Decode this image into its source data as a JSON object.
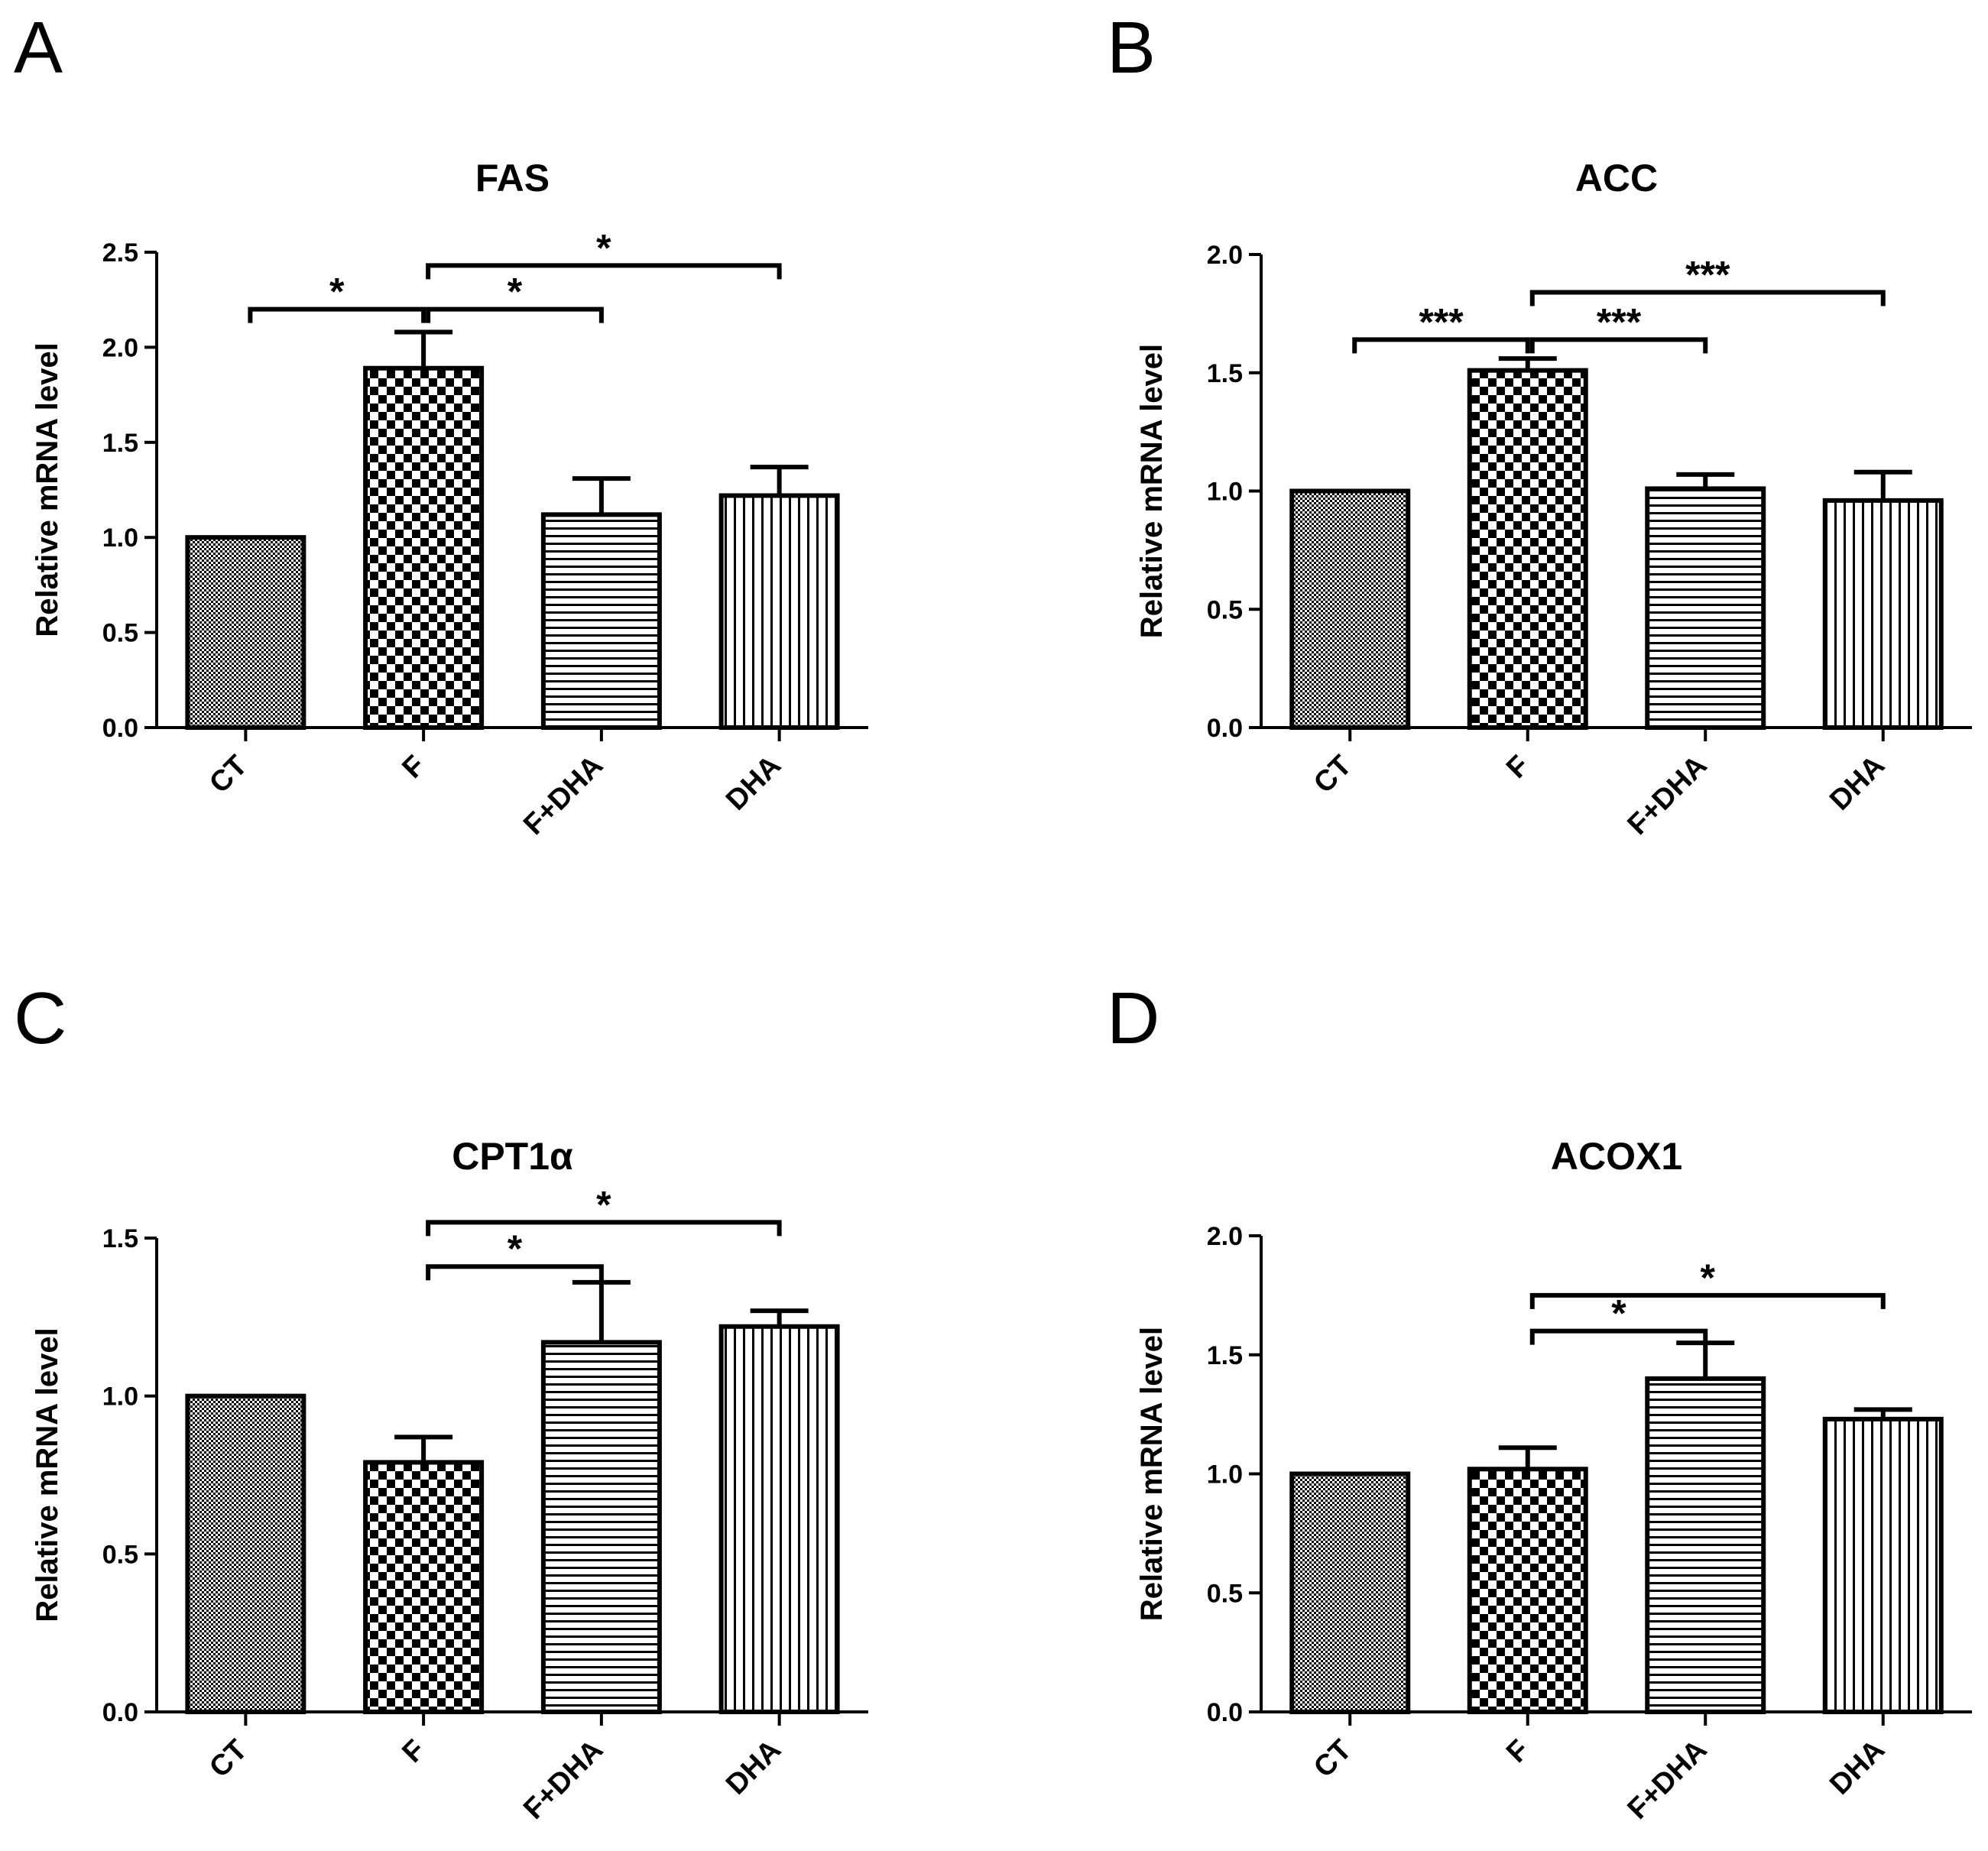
{
  "chart_data": [
    {
      "type": "bar",
      "panel": "A",
      "title": "FAS",
      "ylabel": "Relative mRNA level",
      "categories": [
        "CT",
        "F",
        "F+DHA",
        "DHA"
      ],
      "values": [
        1.0,
        1.89,
        1.12,
        1.22
      ],
      "errors": [
        0.0,
        0.19,
        0.19,
        0.15
      ],
      "ylim": [
        0,
        2.5
      ],
      "yticks": [
        "0.0",
        "0.5",
        "1.0",
        "1.5",
        "2.0",
        "2.5"
      ],
      "ytick_values": [
        0,
        0.5,
        1.0,
        1.5,
        2.0,
        2.5
      ],
      "significance": [
        {
          "from": "CT",
          "to": "F",
          "y": 2.2,
          "label": "*"
        },
        {
          "from": "F",
          "to": "F+DHA",
          "y": 2.2,
          "label": "*"
        },
        {
          "from": "F",
          "to": "DHA",
          "y": 2.43,
          "label": "*"
        }
      ]
    },
    {
      "type": "bar",
      "panel": "B",
      "title": "ACC",
      "ylabel": "Relative mRNA level",
      "categories": [
        "CT",
        "F",
        "F+DHA",
        "DHA"
      ],
      "values": [
        1.0,
        1.51,
        1.01,
        0.96
      ],
      "errors": [
        0.0,
        0.05,
        0.06,
        0.12
      ],
      "ylim": [
        0,
        2.0
      ],
      "yticks": [
        "0.0",
        "0.5",
        "1.0",
        "1.5",
        "2.0"
      ],
      "ytick_values": [
        0,
        0.5,
        1.0,
        1.5,
        2.0
      ],
      "significance": [
        {
          "from": "CT",
          "to": "F",
          "y": 1.64,
          "label": "***"
        },
        {
          "from": "F",
          "to": "F+DHA",
          "y": 1.64,
          "label": "***"
        },
        {
          "from": "F",
          "to": "DHA",
          "y": 1.84,
          "label": "***"
        }
      ]
    },
    {
      "type": "bar",
      "panel": "C",
      "title": "CPT1α",
      "ylabel": "Relative mRNA level",
      "categories": [
        "CT",
        "F",
        "F+DHA",
        "DHA"
      ],
      "values": [
        1.0,
        0.79,
        1.17,
        1.22
      ],
      "errors": [
        0.0,
        0.08,
        0.19,
        0.05
      ],
      "ylim": [
        0,
        1.5
      ],
      "yticks": [
        "0.0",
        "0.5",
        "1.0",
        "1.5"
      ],
      "ytick_values": [
        0,
        0.5,
        1.0,
        1.5
      ],
      "significance": [
        {
          "from": "F",
          "to": "F+DHA",
          "y": 1.41,
          "label": "*"
        },
        {
          "from": "F",
          "to": "DHA",
          "y": 1.55,
          "label": "*"
        }
      ]
    },
    {
      "type": "bar",
      "panel": "D",
      "title": "ACOX1",
      "ylabel": "Relative mRNA level",
      "categories": [
        "CT",
        "F",
        "F+DHA",
        "DHA"
      ],
      "values": [
        1.0,
        1.02,
        1.4,
        1.23
      ],
      "errors": [
        0.0,
        0.09,
        0.15,
        0.04
      ],
      "ylim": [
        0,
        2.0
      ],
      "yticks": [
        "0.0",
        "0.5",
        "1.0",
        "1.5",
        "2.0"
      ],
      "ytick_values": [
        0,
        0.5,
        1.0,
        1.5,
        2.0
      ],
      "significance": [
        {
          "from": "F",
          "to": "F+DHA",
          "y": 1.6,
          "label": "*"
        },
        {
          "from": "F",
          "to": "DHA",
          "y": 1.75,
          "label": "*"
        }
      ]
    }
  ]
}
